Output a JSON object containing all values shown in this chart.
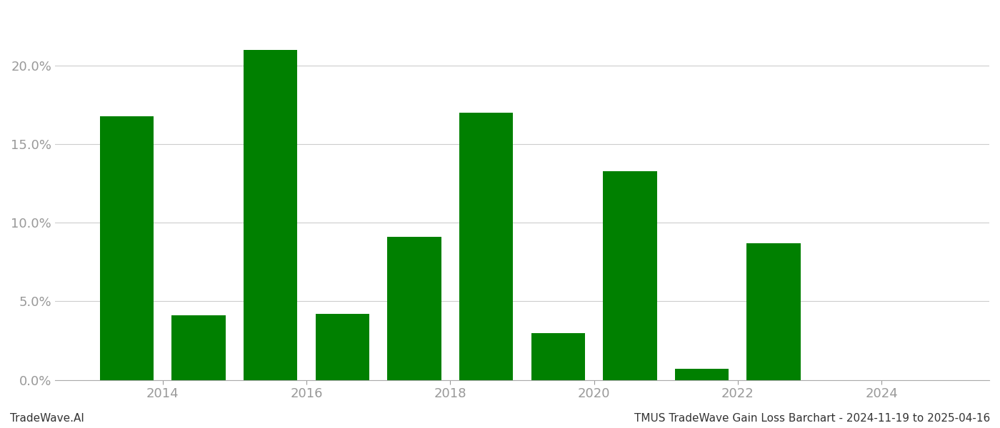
{
  "bar_positions": [
    2013.5,
    2014.5,
    2015.5,
    2016.5,
    2017.5,
    2018.5,
    2019.5,
    2020.5,
    2021.5,
    2022.5,
    2023.5,
    2024.5
  ],
  "values": [
    0.168,
    0.041,
    0.21,
    0.042,
    0.091,
    0.17,
    0.03,
    0.133,
    0.007,
    0.087,
    0.0,
    0.0
  ],
  "bar_color": "#008000",
  "bar_width": 0.75,
  "xlim": [
    2012.5,
    2025.5
  ],
  "ylim": [
    0,
    0.235
  ],
  "yticks": [
    0.0,
    0.05,
    0.1,
    0.15,
    0.2
  ],
  "xtick_positions": [
    2014,
    2016,
    2018,
    2020,
    2022,
    2024
  ],
  "xtick_labels": [
    "2014",
    "2016",
    "2018",
    "2020",
    "2022",
    "2024"
  ],
  "footer_left": "TradeWave.AI",
  "footer_right": "TMUS TradeWave Gain Loss Barchart - 2024-11-19 to 2025-04-16",
  "background_color": "#ffffff",
  "grid_color": "#cccccc",
  "axis_color": "#aaaaaa",
  "tick_color": "#999999",
  "footer_fontsize": 11
}
